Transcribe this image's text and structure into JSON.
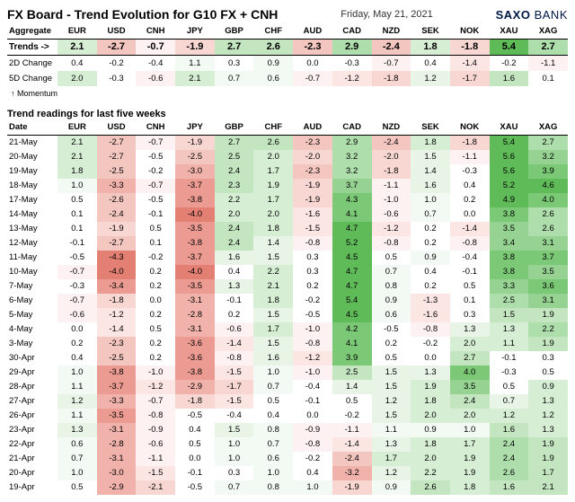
{
  "title": "FX Board - Trend Evolution for G10 FX + CNH",
  "date": "Friday, May 21, 2021",
  "logo": {
    "part1": "SAXO",
    "part2": "BANK"
  },
  "columns": [
    "EUR",
    "USD",
    "CNH",
    "JPY",
    "GBP",
    "CHF",
    "AUD",
    "CAD",
    "NZD",
    "SEK",
    "NOK",
    "XAU",
    "XAG"
  ],
  "aggregate": {
    "label": "Aggregate",
    "trends_label": "Trends ->",
    "change2d_label": "2D Change",
    "change5d_label": "5D Change",
    "momentum_label": "↑ Momentum",
    "trends": [
      2.1,
      -2.7,
      -0.7,
      -1.9,
      2.7,
      2.6,
      -2.3,
      2.9,
      -2.4,
      1.8,
      -1.8,
      5.4,
      2.7
    ],
    "change2d": [
      0.4,
      -0.2,
      -0.4,
      1.1,
      0.3,
      0.9,
      0.0,
      -0.3,
      -0.7,
      0.4,
      -1.4,
      -0.2,
      -1.1
    ],
    "change5d": [
      2.0,
      -0.3,
      -0.6,
      2.1,
      0.7,
      0.6,
      -0.7,
      -1.2,
      -1.8,
      1.2,
      -1.7,
      1.6,
      0.1
    ]
  },
  "section_title": "Trend readings for last five weeks",
  "date_header": "Date",
  "history": [
    {
      "d": "21-May",
      "v": [
        2.1,
        -2.7,
        -0.7,
        -1.9,
        2.7,
        2.6,
        -2.3,
        2.9,
        -2.4,
        1.8,
        -1.8,
        5.4,
        2.7
      ]
    },
    {
      "d": "20-May",
      "v": [
        2.1,
        -2.7,
        -0.5,
        -2.5,
        2.5,
        2.0,
        -2.0,
        3.2,
        -2.0,
        1.5,
        -1.1,
        5.6,
        3.2
      ]
    },
    {
      "d": "19-May",
      "v": [
        1.8,
        -2.5,
        -0.2,
        -3.0,
        2.4,
        1.7,
        -2.3,
        3.2,
        -1.8,
        1.4,
        -0.3,
        5.6,
        3.9
      ]
    },
    {
      "d": "18-May",
      "v": [
        1.0,
        -3.3,
        -0.7,
        -3.7,
        2.3,
        1.9,
        -1.9,
        3.7,
        -1.1,
        1.6,
        0.4,
        5.2,
        4.6
      ]
    },
    {
      "d": "17-May",
      "v": [
        0.5,
        -2.6,
        -0.5,
        -3.8,
        2.2,
        1.7,
        -1.9,
        4.3,
        -1.0,
        1.0,
        0.2,
        4.9,
        4.0
      ]
    },
    {
      "d": "14-May",
      "v": [
        0.1,
        -2.4,
        -0.1,
        -4.0,
        2.0,
        2.0,
        -1.6,
        4.1,
        -0.6,
        0.7,
        0.0,
        3.8,
        2.6
      ]
    },
    {
      "d": "13-May",
      "v": [
        0.1,
        -1.9,
        0.5,
        -3.5,
        2.4,
        1.8,
        -1.5,
        4.7,
        -1.2,
        0.2,
        -1.4,
        3.5,
        2.6
      ]
    },
    {
      "d": "12-May",
      "v": [
        -0.1,
        -2.7,
        0.1,
        -3.8,
        2.4,
        1.4,
        -0.8,
        5.2,
        -0.8,
        0.2,
        -0.8,
        3.4,
        3.1
      ]
    },
    {
      "d": "11-May",
      "v": [
        -0.5,
        -4.3,
        -0.2,
        -3.7,
        1.6,
        1.5,
        0.3,
        4.5,
        0.5,
        0.9,
        -0.4,
        3.8,
        3.7
      ]
    },
    {
      "d": "10-May",
      "v": [
        -0.7,
        -4.0,
        0.2,
        -4.0,
        0.4,
        2.2,
        0.3,
        4.7,
        0.7,
        0.4,
        -0.1,
        3.8,
        3.5
      ]
    },
    {
      "d": "7-May",
      "v": [
        -0.3,
        -3.4,
        0.2,
        -3.5,
        1.3,
        2.1,
        0.2,
        4.7,
        0.8,
        0.2,
        0.5,
        3.3,
        3.6
      ]
    },
    {
      "d": "6-May",
      "v": [
        -0.7,
        -1.8,
        0.0,
        -3.1,
        -0.1,
        1.8,
        -0.2,
        5.4,
        0.9,
        -1.3,
        0.1,
        2.5,
        3.1
      ]
    },
    {
      "d": "5-May",
      "v": [
        -0.6,
        -1.2,
        0.2,
        -2.8,
        0.2,
        1.5,
        -0.5,
        4.5,
        0.6,
        -1.6,
        0.3,
        1.5,
        1.9
      ]
    },
    {
      "d": "4-May",
      "v": [
        0.0,
        -1.4,
        0.5,
        -3.1,
        -0.6,
        1.7,
        -1.0,
        4.2,
        -0.5,
        -0.8,
        1.3,
        1.3,
        2.2
      ]
    },
    {
      "d": "3-May",
      "v": [
        0.2,
        -2.3,
        0.2,
        -3.6,
        -1.4,
        1.5,
        -0.8,
        4.1,
        0.2,
        -0.2,
        2.0,
        1.1,
        1.9
      ]
    },
    {
      "d": "30-Apr",
      "v": [
        0.4,
        -2.5,
        0.2,
        -3.6,
        -0.8,
        1.6,
        -1.2,
        3.9,
        0.5,
        0.0,
        2.7,
        -0.1,
        0.3
      ]
    },
    {
      "d": "29-Apr",
      "v": [
        1.0,
        -3.8,
        -1.0,
        -3.8,
        -1.5,
        1.0,
        -1.0,
        2.5,
        1.5,
        1.3,
        4.0,
        -0.3,
        0.5
      ]
    },
    {
      "d": "28-Apr",
      "v": [
        1.1,
        -3.7,
        -1.2,
        -2.9,
        -1.7,
        0.7,
        -0.4,
        1.4,
        1.5,
        1.9,
        3.5,
        0.5,
        0.9
      ]
    },
    {
      "d": "27-Apr",
      "v": [
        1.2,
        -3.3,
        -0.7,
        -1.8,
        -1.5,
        0.5,
        -0.1,
        0.5,
        1.2,
        1.8,
        2.4,
        0.7,
        1.3
      ]
    },
    {
      "d": "26-Apr",
      "v": [
        1.1,
        -3.5,
        -0.8,
        -0.5,
        -0.4,
        0.4,
        0.0,
        -0.2,
        1.5,
        2.0,
        2.0,
        1.2,
        1.2
      ]
    },
    {
      "d": "23-Apr",
      "v": [
        1.3,
        -3.1,
        -0.9,
        0.4,
        1.5,
        0.8,
        -0.9,
        -1.1,
        1.1,
        0.9,
        1.0,
        1.6,
        1.3
      ]
    },
    {
      "d": "22-Apr",
      "v": [
        0.6,
        -2.8,
        -0.6,
        0.5,
        1.0,
        0.7,
        -0.8,
        -1.4,
        1.3,
        1.8,
        1.7,
        2.4,
        1.9
      ]
    },
    {
      "d": "21-Apr",
      "v": [
        0.7,
        -3.1,
        -1.1,
        0.0,
        1.0,
        0.6,
        -0.2,
        -2.4,
        1.7,
        2.0,
        1.9,
        2.4,
        1.9
      ]
    },
    {
      "d": "20-Apr",
      "v": [
        1.0,
        -3.0,
        -1.5,
        -0.1,
        0.3,
        1.0,
        0.4,
        -3.2,
        1.2,
        2.2,
        1.9,
        2.6,
        1.7
      ]
    },
    {
      "d": "19-Apr",
      "v": [
        0.5,
        -2.9,
        -2.1,
        -0.5,
        0.7,
        0.8,
        1.0,
        -1.9,
        0.9,
        2.6,
        1.8,
        1.6,
        2.1
      ]
    }
  ],
  "style": {
    "pos_colors": [
      "#ffffff",
      "#f3faf3",
      "#e7f4e6",
      "#d6eed4",
      "#c3e6c0",
      "#aedeab",
      "#96d392",
      "#7bc976",
      "#5ebb58"
    ],
    "neg_colors": [
      "#ffffff",
      "#fdf2f1",
      "#fbe6e3",
      "#f8d7d3",
      "#f4c6c0",
      "#f0b2aa",
      "#eb9b91",
      "#e37f73",
      "#db6254"
    ],
    "xau_thresh": 0.5,
    "font_family": "Arial",
    "title_fontsize": 14,
    "cell_fontsize": 9.5
  }
}
